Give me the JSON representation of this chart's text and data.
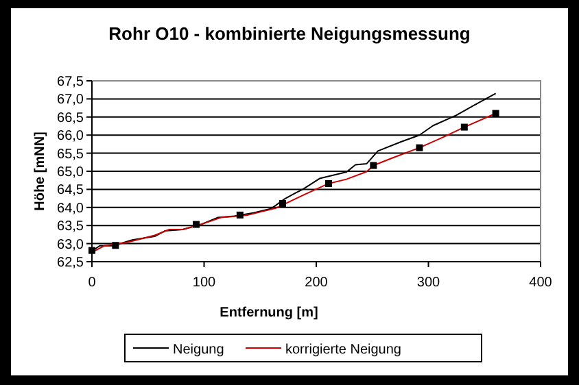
{
  "chart_data": {
    "type": "line",
    "title": "Rohr O10 - kombinierte Neigungsmessung",
    "xlabel": "Entfernung [m]",
    "ylabel": "Höhe [mNN]",
    "xlim": [
      0,
      400
    ],
    "xticks": [
      0,
      100,
      200,
      300,
      400
    ],
    "ylim": [
      62.5,
      67.5
    ],
    "yticks": [
      {
        "value": 62.5,
        "label": "62,5"
      },
      {
        "value": 63,
        "label": "63,0"
      },
      {
        "value": 63.5,
        "label": "63,5"
      },
      {
        "value": 64,
        "label": "64,0"
      },
      {
        "value": 64.5,
        "label": "64,5"
      },
      {
        "value": 65,
        "label": "65,0"
      },
      {
        "value": 65.5,
        "label": "65,5"
      },
      {
        "value": 66,
        "label": "66,0"
      },
      {
        "value": 66.5,
        "label": "66,5"
      },
      {
        "value": 67,
        "label": "67,0"
      },
      {
        "value": 67.5,
        "label": "67,5"
      }
    ],
    "grid": "y",
    "legend": "bottom",
    "marker": "none",
    "line_style": "solid",
    "series": [
      {
        "name": "Neigung",
        "color": "#000000",
        "x": [
          0,
          7,
          19,
          36,
          56,
          65,
          81,
          98,
          112,
          127,
          144,
          160,
          171,
          181,
          188,
          203,
          227,
          235,
          245,
          255,
          276,
          292,
          304,
          325,
          341,
          360
        ],
        "values": [
          62.79,
          62.94,
          62.94,
          63.1,
          63.2,
          63.35,
          63.39,
          63.54,
          63.72,
          63.76,
          63.85,
          63.97,
          64.22,
          64.39,
          64.5,
          64.8,
          64.98,
          65.18,
          65.21,
          65.56,
          65.82,
          66.0,
          66.26,
          66.55,
          66.83,
          67.15
        ]
      },
      {
        "name": "korrigierte Neigung",
        "color": "#cc0000",
        "x": [
          0,
          11,
          32,
          56,
          69,
          81,
          98,
          115,
          139,
          164,
          187,
          211,
          227,
          245,
          251,
          268,
          292,
          313,
          332,
          360
        ],
        "values": [
          62.76,
          62.94,
          63.04,
          63.23,
          63.39,
          63.39,
          63.54,
          63.72,
          63.79,
          63.98,
          64.32,
          64.66,
          64.78,
          64.99,
          65.16,
          65.37,
          65.65,
          65.94,
          66.22,
          66.6
        ]
      },
      {
        "type": "scatter",
        "marker": "square",
        "color": "#000000",
        "x": [
          0,
          21,
          93,
          132,
          170,
          211,
          251,
          292,
          332,
          360
        ],
        "values": [
          62.81,
          62.95,
          63.53,
          63.79,
          64.11,
          64.66,
          65.16,
          65.65,
          66.22,
          66.6
        ]
      }
    ]
  }
}
